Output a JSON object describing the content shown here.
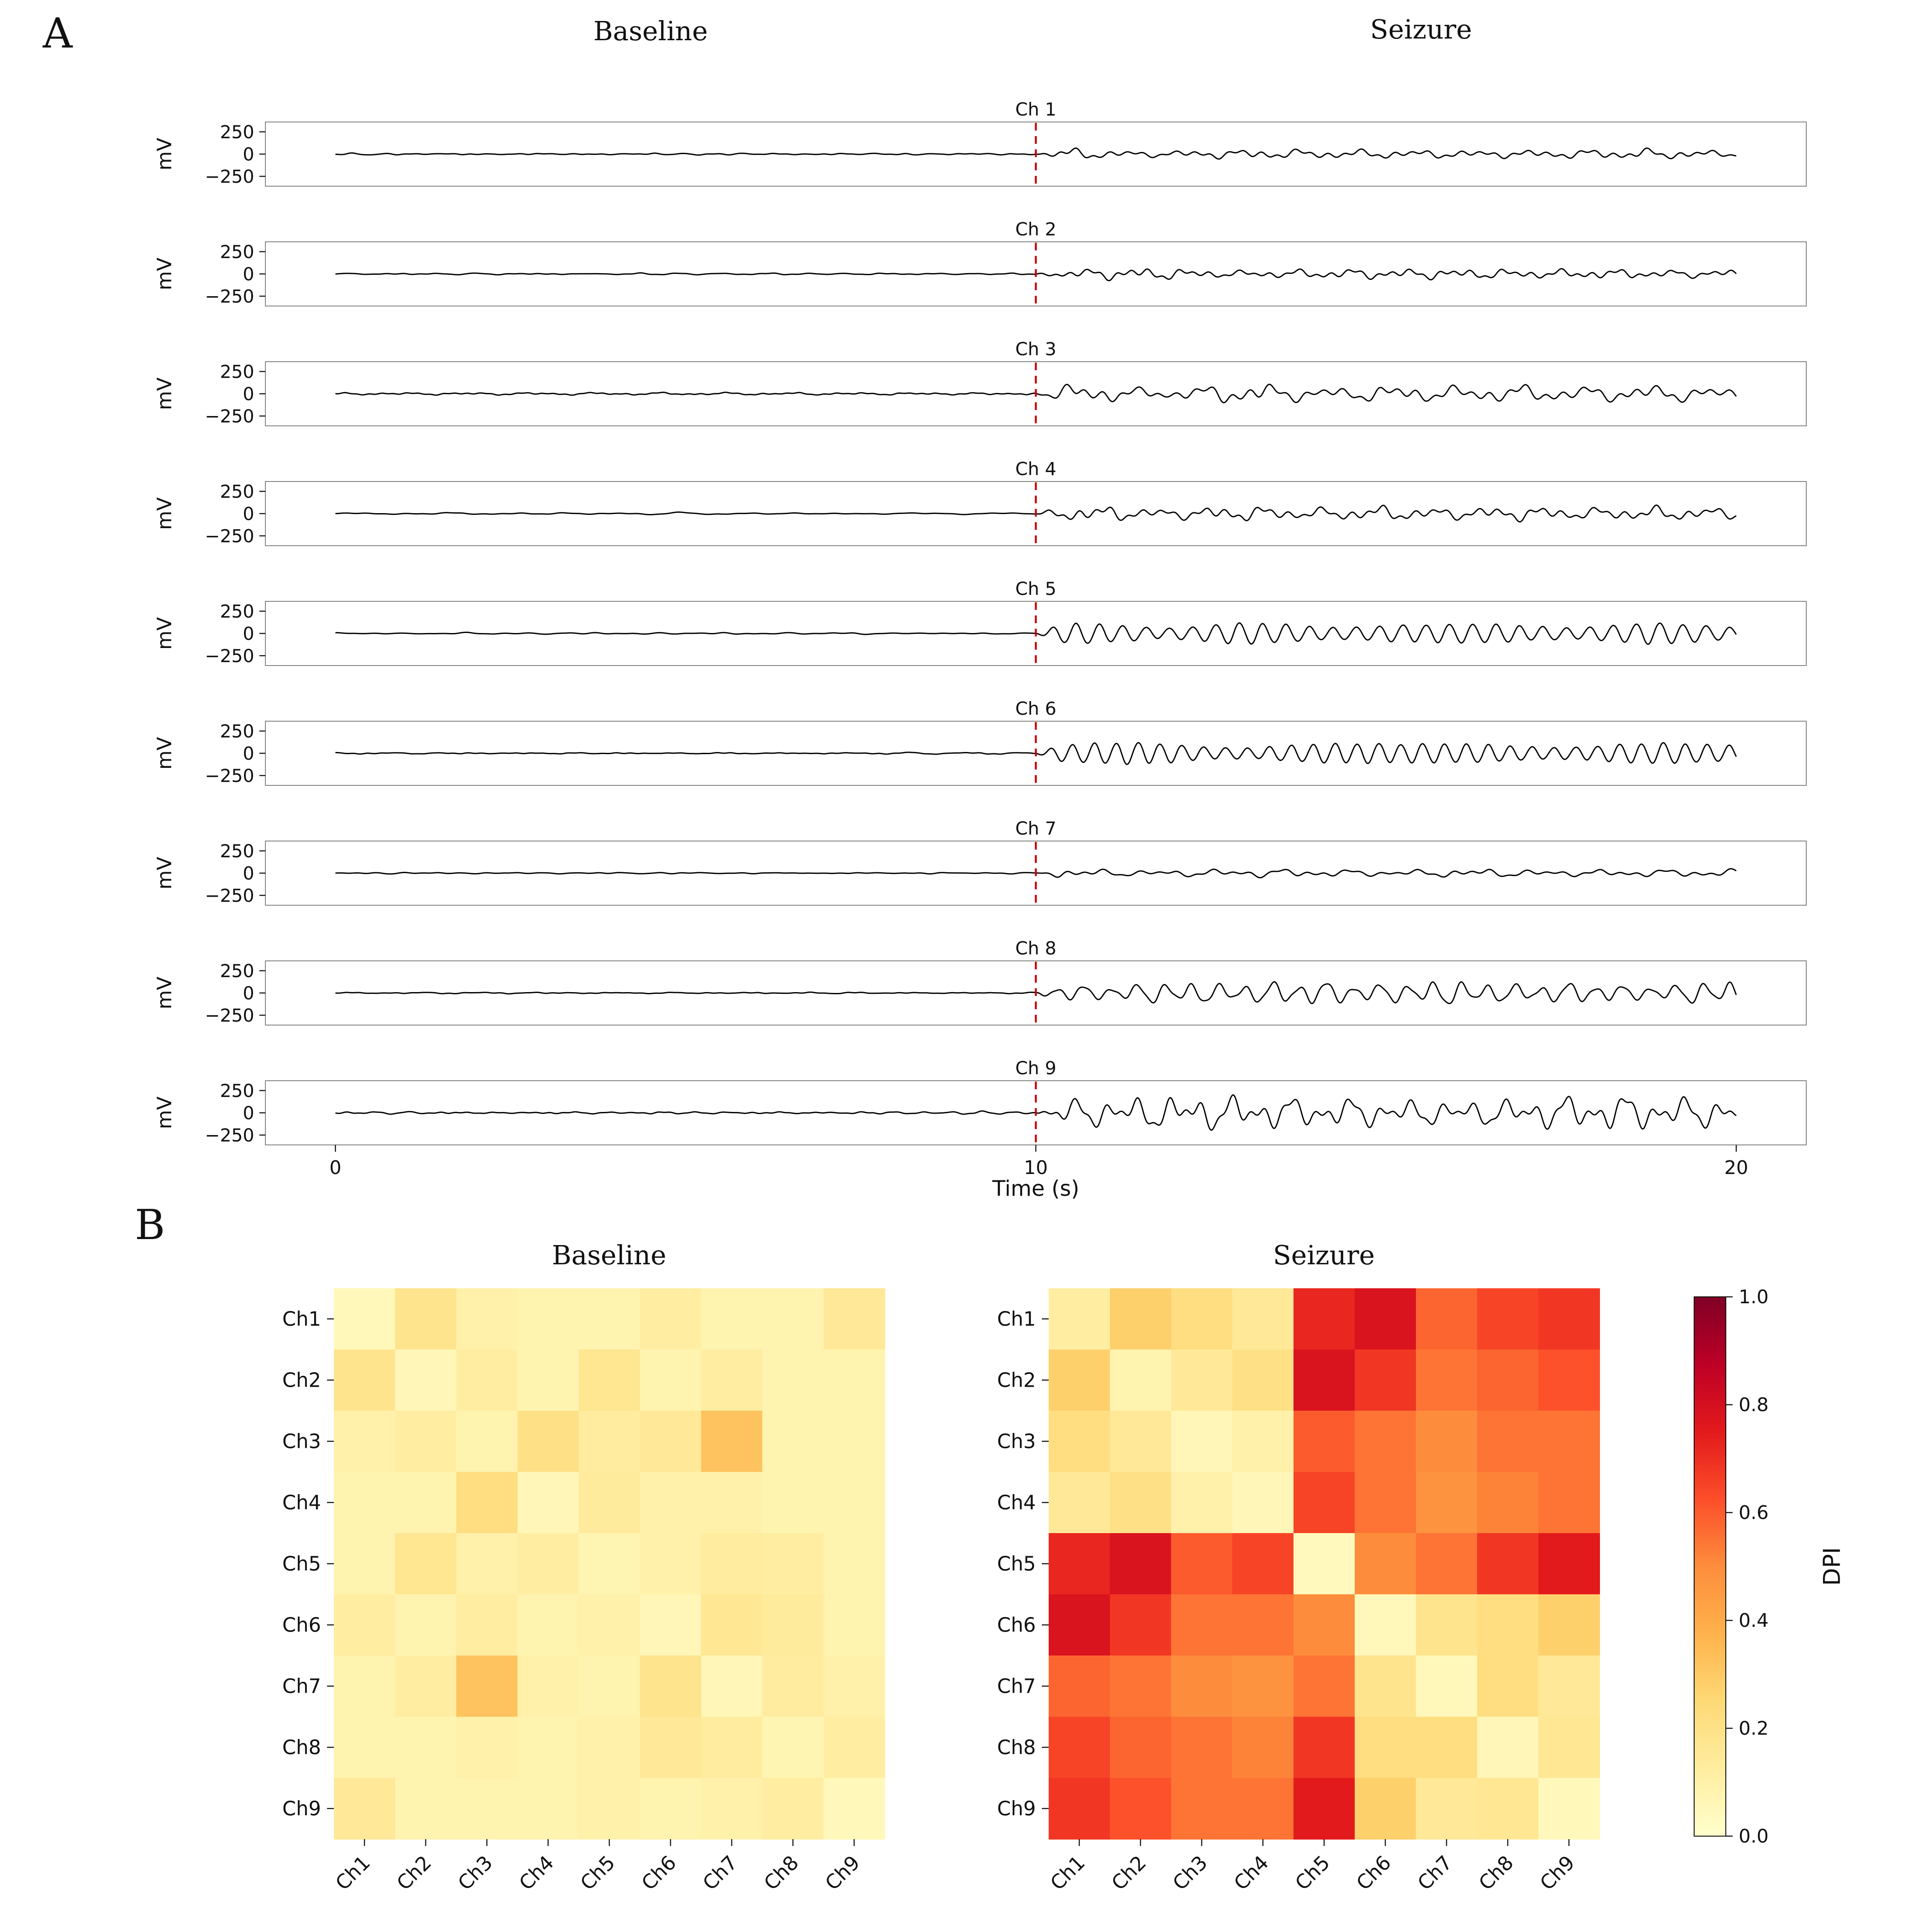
{
  "figure": {
    "panel_a": {
      "label": "A",
      "left_title": "Baseline",
      "right_title": "Seizure",
      "xlabel": "Time (s)",
      "ylabel": "mV",
      "ytick_labels": [
        "250",
        "0",
        "−250"
      ],
      "xtick_labels": [
        "0",
        "10",
        "20"
      ],
      "onset_line_color": "#cc0000"
    },
    "panel_b": {
      "label": "B",
      "left_title": "Baseline",
      "right_title": "Seizure",
      "colorbar_label": "DPI",
      "colorbar_tick_labels": [
        "1.0",
        "0.8",
        "0.6",
        "0.4",
        "0.2",
        "0.0"
      ],
      "colormap": {
        "name": "YlOrRd",
        "anchors": [
          [
            0.0,
            "#ffffcc"
          ],
          [
            0.125,
            "#ffeda0"
          ],
          [
            0.25,
            "#fed976"
          ],
          [
            0.375,
            "#feb24c"
          ],
          [
            0.5,
            "#fd8d3c"
          ],
          [
            0.625,
            "#fc4e2a"
          ],
          [
            0.75,
            "#e31a1c"
          ],
          [
            0.875,
            "#bd0026"
          ],
          [
            1.0,
            "#800026"
          ]
        ]
      }
    }
  },
  "chart_data": [
    {
      "type": "line",
      "panel": "A",
      "description": "Nine-channel time series, quiet baseline 0-10 s, seizure-like oscillations 10-20 s, red dashed onset marker at 10 s",
      "left_title": "Baseline",
      "right_title": "Seizure",
      "xlabel": "Time (s)",
      "ylabel": "mV",
      "x_range_s": [
        0,
        20
      ],
      "x_ticks_s": [
        0,
        10,
        20
      ],
      "y_ticks_mv": [
        250,
        0,
        -250
      ],
      "seizure_onset_s": 10,
      "channels": [
        {
          "name": "Ch 1",
          "baseline_amp_mv": 18,
          "seizure_amp_mv": 60,
          "seizure_freq_hz": 2.2,
          "regularity": 0.3
        },
        {
          "name": "Ch 2",
          "baseline_amp_mv": 16,
          "seizure_amp_mv": 70,
          "seizure_freq_hz": 2.4,
          "regularity": 0.35
        },
        {
          "name": "Ch 3",
          "baseline_amp_mv": 22,
          "seizure_amp_mv": 115,
          "seizure_freq_hz": 2.0,
          "regularity": 0.3
        },
        {
          "name": "Ch 4",
          "baseline_amp_mv": 20,
          "seizure_amp_mv": 95,
          "seizure_freq_hz": 2.3,
          "regularity": 0.35
        },
        {
          "name": "Ch 5",
          "baseline_amp_mv": 15,
          "seizure_amp_mv": 120,
          "seizure_freq_hz": 3.0,
          "regularity": 0.95
        },
        {
          "name": "Ch 6",
          "baseline_amp_mv": 15,
          "seizure_amp_mv": 125,
          "seizure_freq_hz": 3.2,
          "regularity": 0.95
        },
        {
          "name": "Ch 7",
          "baseline_amp_mv": 15,
          "seizure_amp_mv": 55,
          "seizure_freq_hz": 2.0,
          "regularity": 0.4
        },
        {
          "name": "Ch 8",
          "baseline_amp_mv": 16,
          "seizure_amp_mv": 150,
          "seizure_freq_hz": 2.6,
          "regularity": 0.7
        },
        {
          "name": "Ch 9",
          "baseline_amp_mv": 22,
          "seizure_amp_mv": 230,
          "seizure_freq_hz": 2.3,
          "regularity": 0.5
        }
      ]
    },
    {
      "type": "heatmap",
      "panel": "B",
      "title": "Baseline",
      "value_label": "DPI",
      "value_range": [
        0,
        1
      ],
      "colormap": "YlOrRd",
      "rows": [
        "Ch1",
        "Ch2",
        "Ch3",
        "Ch4",
        "Ch5",
        "Ch6",
        "Ch7",
        "Ch8",
        "Ch9"
      ],
      "cols": [
        "Ch1",
        "Ch2",
        "Ch3",
        "Ch4",
        "Ch5",
        "Ch6",
        "Ch7",
        "Ch8",
        "Ch9"
      ],
      "values": [
        [
          0.05,
          0.18,
          0.1,
          0.08,
          0.08,
          0.12,
          0.08,
          0.08,
          0.15
        ],
        [
          0.18,
          0.06,
          0.12,
          0.08,
          0.17,
          0.08,
          0.12,
          0.08,
          0.08
        ],
        [
          0.1,
          0.12,
          0.08,
          0.2,
          0.13,
          0.15,
          0.32,
          0.08,
          0.08
        ],
        [
          0.08,
          0.08,
          0.22,
          0.06,
          0.14,
          0.1,
          0.1,
          0.08,
          0.08
        ],
        [
          0.08,
          0.17,
          0.1,
          0.12,
          0.07,
          0.1,
          0.13,
          0.12,
          0.08
        ],
        [
          0.12,
          0.08,
          0.12,
          0.08,
          0.1,
          0.06,
          0.16,
          0.14,
          0.08
        ],
        [
          0.08,
          0.12,
          0.32,
          0.1,
          0.08,
          0.18,
          0.06,
          0.13,
          0.1
        ],
        [
          0.08,
          0.08,
          0.1,
          0.08,
          0.1,
          0.15,
          0.13,
          0.07,
          0.12
        ],
        [
          0.15,
          0.08,
          0.08,
          0.08,
          0.1,
          0.08,
          0.1,
          0.12,
          0.05
        ]
      ]
    },
    {
      "type": "heatmap",
      "panel": "B",
      "title": "Seizure",
      "value_label": "DPI",
      "value_range": [
        0,
        1
      ],
      "colormap": "YlOrRd",
      "rows": [
        "Ch1",
        "Ch2",
        "Ch3",
        "Ch4",
        "Ch5",
        "Ch6",
        "Ch7",
        "Ch8",
        "Ch9"
      ],
      "cols": [
        "Ch1",
        "Ch2",
        "Ch3",
        "Ch4",
        "Ch5",
        "Ch6",
        "Ch7",
        "Ch8",
        "Ch9"
      ],
      "values": [
        [
          0.12,
          0.28,
          0.22,
          0.15,
          0.72,
          0.78,
          0.58,
          0.65,
          0.68
        ],
        [
          0.28,
          0.08,
          0.15,
          0.2,
          0.78,
          0.68,
          0.55,
          0.58,
          0.62
        ],
        [
          0.22,
          0.15,
          0.06,
          0.1,
          0.6,
          0.55,
          0.5,
          0.55,
          0.55
        ],
        [
          0.15,
          0.2,
          0.1,
          0.06,
          0.65,
          0.55,
          0.48,
          0.52,
          0.55
        ],
        [
          0.72,
          0.78,
          0.6,
          0.65,
          0.04,
          0.5,
          0.55,
          0.68,
          0.75
        ],
        [
          0.78,
          0.68,
          0.55,
          0.55,
          0.5,
          0.05,
          0.18,
          0.22,
          0.28
        ],
        [
          0.58,
          0.55,
          0.5,
          0.48,
          0.55,
          0.18,
          0.05,
          0.22,
          0.15
        ],
        [
          0.65,
          0.58,
          0.55,
          0.52,
          0.68,
          0.22,
          0.22,
          0.06,
          0.16
        ],
        [
          0.68,
          0.62,
          0.55,
          0.55,
          0.75,
          0.28,
          0.15,
          0.16,
          0.05
        ]
      ]
    }
  ]
}
